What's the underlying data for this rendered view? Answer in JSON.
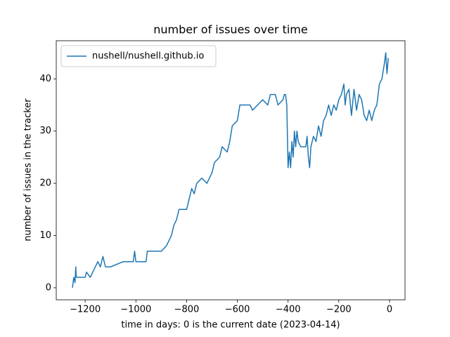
{
  "chart_data": {
    "type": "line",
    "title": "number of issues over time",
    "xlabel": "time in days: 0 is the current date (2023-04-14)",
    "ylabel": "number of issues in the tracker",
    "legend": "upper left",
    "xlim": [
      -1314,
      61
    ],
    "ylim": [
      -2.3,
      47.3
    ],
    "xticks": [
      {
        "value": -1200,
        "label": "−1200"
      },
      {
        "value": -1000,
        "label": "−1000"
      },
      {
        "value": -800,
        "label": "−800"
      },
      {
        "value": -600,
        "label": "−600"
      },
      {
        "value": -400,
        "label": "−400"
      },
      {
        "value": -200,
        "label": "−200"
      },
      0
    ],
    "yticks": [
      0,
      10,
      20,
      30,
      40
    ],
    "series": [
      {
        "name": "nushell/nushell.github.io",
        "color": "#1f77b4",
        "x": [
          -1250,
          -1245,
          -1240,
          -1237,
          -1235,
          -1200,
          -1195,
          -1180,
          -1170,
          -1160,
          -1150,
          -1140,
          -1130,
          -1120,
          -1100,
          -1050,
          -1010,
          -1005,
          -1000,
          -960,
          -955,
          -900,
          -880,
          -870,
          -860,
          -850,
          -840,
          -830,
          -800,
          -790,
          -780,
          -770,
          -760,
          -740,
          -720,
          -700,
          -690,
          -670,
          -660,
          -640,
          -630,
          -620,
          -600,
          -590,
          -550,
          -540,
          -520,
          -500,
          -480,
          -470,
          -450,
          -440,
          -420,
          -415,
          -410,
          -405,
          -400,
          -395,
          -390,
          -385,
          -380,
          -375,
          -370,
          -365,
          -360,
          -350,
          -330,
          -325,
          -320,
          -315,
          -310,
          -300,
          -290,
          -280,
          -270,
          -260,
          -250,
          -240,
          -230,
          -220,
          -210,
          -200,
          -190,
          -180,
          -175,
          -170,
          -160,
          -150,
          -140,
          -130,
          -120,
          -110,
          -100,
          -90,
          -80,
          -70,
          -60,
          -50,
          -40,
          -30,
          -20,
          -15,
          -10,
          -5
        ],
        "values": [
          0,
          2,
          1,
          4,
          2,
          2,
          3,
          2,
          3,
          4,
          5,
          4,
          6,
          4,
          4,
          5,
          5,
          7,
          5,
          5,
          7,
          7,
          8,
          9,
          10,
          12,
          13,
          15,
          15,
          17,
          19,
          18,
          20,
          21,
          20,
          22,
          24,
          25,
          27,
          26,
          28,
          31,
          32,
          35,
          35,
          34,
          35,
          36,
          35,
          37,
          37,
          35,
          36,
          37,
          37,
          35,
          23,
          26,
          23,
          28,
          25,
          30,
          27,
          30,
          28,
          27,
          27,
          29,
          25,
          23,
          27,
          29,
          28,
          31,
          29,
          32,
          33,
          35,
          33,
          35,
          34,
          36,
          37,
          39,
          35,
          37,
          38,
          33,
          38,
          34,
          37,
          36,
          33,
          32,
          34,
          32,
          34,
          35,
          39,
          40,
          43,
          45,
          41,
          44
        ]
      }
    ]
  }
}
